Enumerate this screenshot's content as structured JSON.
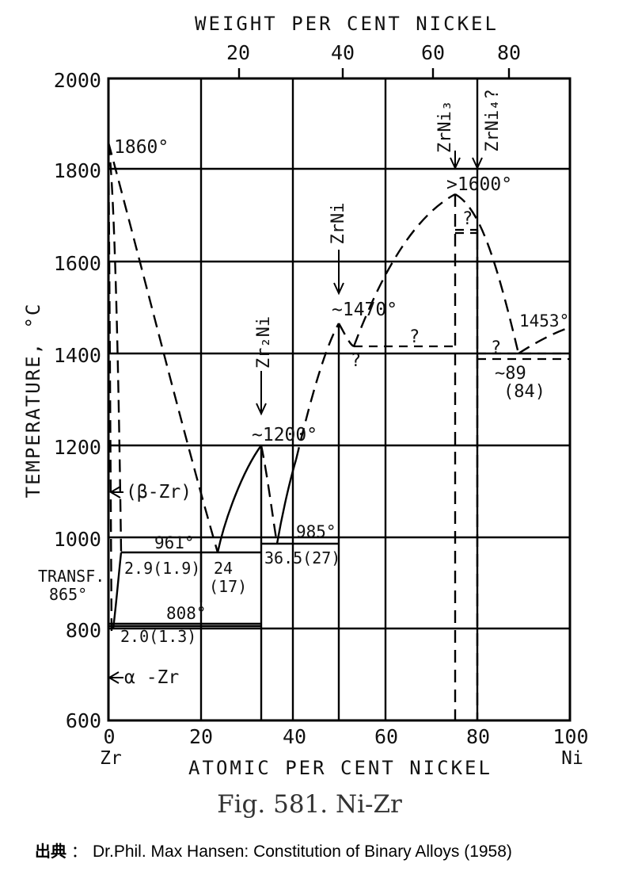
{
  "top_axis": {
    "title": "WEIGHT PER CENT NICKEL",
    "ticks": [
      {
        "label": "20",
        "value": 20
      },
      {
        "label": "40",
        "value": 40
      },
      {
        "label": "60",
        "value": 60
      },
      {
        "label": "80",
        "value": 80
      }
    ]
  },
  "bottom_axis": {
    "title": "ATOMIC PER CENT NICKEL",
    "ticks": [
      {
        "label": "0",
        "value": 0
      },
      {
        "label": "20",
        "value": 20
      },
      {
        "label": "40",
        "value": 40
      },
      {
        "label": "60",
        "value": 60
      },
      {
        "label": "80",
        "value": 80
      },
      {
        "label": "100",
        "value": 100
      }
    ],
    "left_element": "Zr",
    "right_element": "Ni"
  },
  "left_axis": {
    "title": "TEMPERATURE, °C",
    "ticks": [
      {
        "label": "2000",
        "value": 2000
      },
      {
        "label": "1800",
        "value": 1800
      },
      {
        "label": "1600",
        "value": 1600
      },
      {
        "label": "1400",
        "value": 1400
      },
      {
        "label": "1200",
        "value": 1200
      },
      {
        "label": "1000",
        "value": 1000
      },
      {
        "label": "800",
        "value": 800
      },
      {
        "label": "600",
        "value": 600
      }
    ],
    "transf_line1": "TRANSF.",
    "transf_line2": "865°"
  },
  "compounds": {
    "zr2ni": "Zr₂Ni",
    "zrni": "ZrNi",
    "zrni3": "ZrNi₃",
    "zrni4": "ZrNi₄?"
  },
  "annotations": {
    "t1860": "1860°",
    "t1600": ">1600°",
    "t1470": "~1470°",
    "t1453": "1453°",
    "t1200": "~1200°",
    "t961": "961°",
    "t985": "985°",
    "t808": "808°",
    "c29": "2.9(1.9)",
    "c24a": "24",
    "c24b": "(17)",
    "c365": "36.5(27)",
    "c20": "2.0(1.3)",
    "c89a": "~89",
    "c89b": "(84)",
    "beta": "(β-Zr)",
    "alpha": "α -Zr",
    "q": "?"
  },
  "caption": "Fig. 581. Ni-Zr",
  "source_label": "出典",
  "source_sep": "：",
  "source_text": "Dr.Phil. Max Hansen: Constitution of Binary Alloys (1958)"
}
